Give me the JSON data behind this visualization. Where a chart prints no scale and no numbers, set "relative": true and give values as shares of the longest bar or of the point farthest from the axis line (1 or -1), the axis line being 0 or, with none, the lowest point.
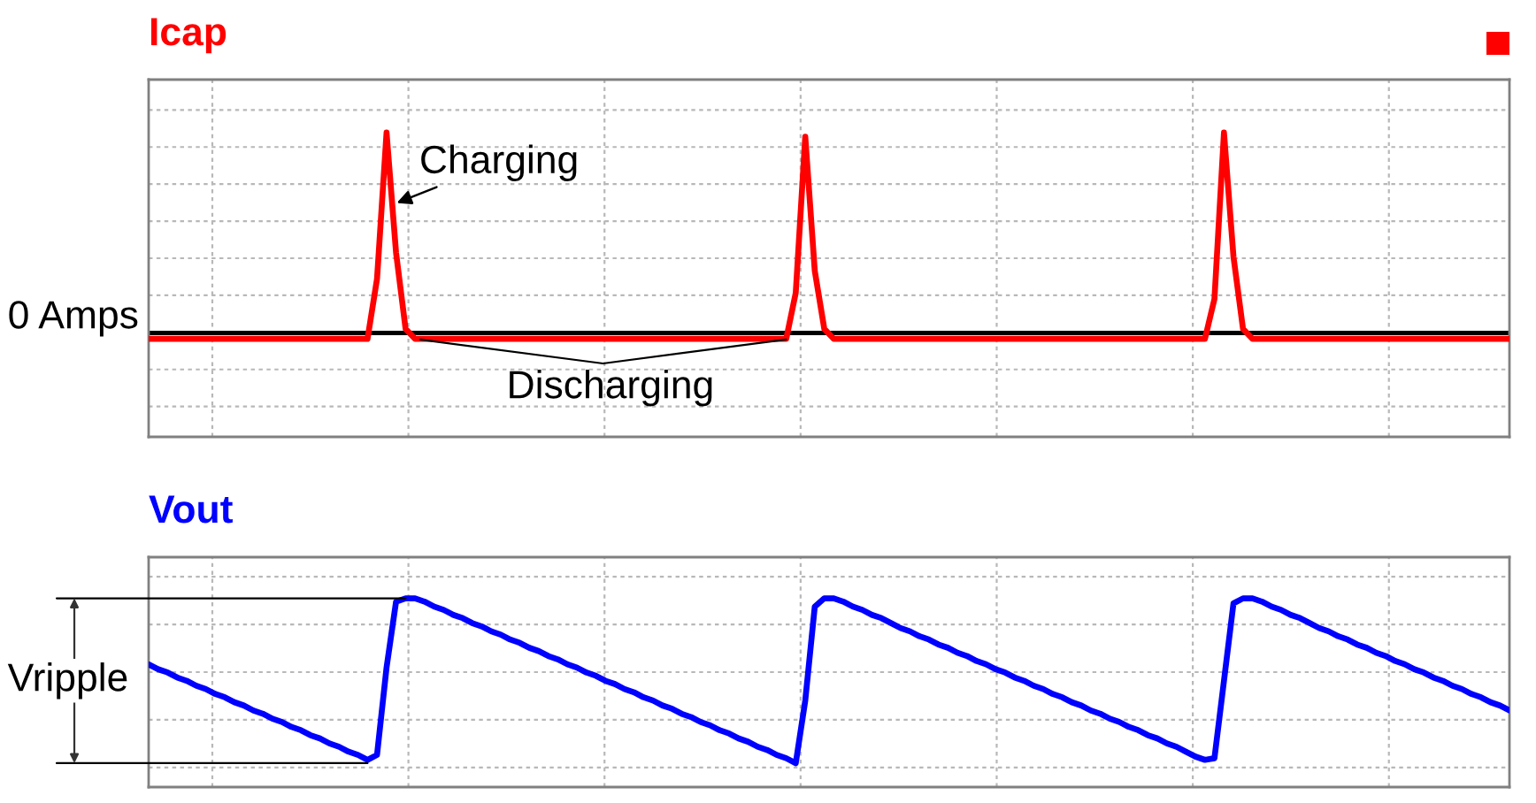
{
  "chart_data": [
    {
      "type": "line",
      "title": "Icap",
      "relative": true,
      "grid": true,
      "categories": [
        null,
        null,
        null,
        null,
        null,
        null,
        null,
        null,
        null,
        null,
        null,
        null,
        null,
        null,
        null,
        null,
        null,
        null,
        null,
        null,
        null,
        null,
        null,
        null,
        null,
        null,
        null,
        null,
        null,
        null,
        null,
        null,
        null,
        null,
        null,
        null,
        null,
        null,
        null,
        null,
        null,
        null,
        null,
        null,
        null,
        null,
        null,
        null,
        null,
        null,
        null,
        null,
        null,
        null,
        null,
        null,
        null,
        null,
        null,
        null,
        null,
        null,
        null,
        null,
        null,
        null,
        null,
        null,
        null,
        null,
        null,
        null,
        null,
        null,
        null,
        null,
        null,
        null,
        null,
        null,
        null,
        null,
        null,
        null,
        null,
        null,
        null,
        null,
        null,
        null,
        null,
        null,
        null,
        null,
        null,
        null,
        null,
        null,
        null,
        null,
        null,
        null,
        null,
        null,
        null,
        null,
        null,
        null,
        null,
        null,
        null,
        null,
        null,
        null,
        null,
        null,
        null,
        null,
        null,
        null,
        null,
        null,
        null,
        null,
        null,
        null,
        null,
        null,
        null,
        null,
        null,
        null,
        null,
        null,
        null,
        null,
        null,
        null,
        null,
        null,
        null,
        null,
        null,
        null
      ],
      "series": [
        {
          "color": "#ff0000",
          "values": [
            -0.03,
            -0.03,
            -0.03,
            -0.03,
            -0.03,
            -0.03,
            -0.03,
            -0.03,
            -0.03,
            -0.03,
            -0.03,
            -0.03,
            -0.03,
            -0.03,
            -0.03,
            -0.03,
            -0.03,
            -0.03,
            -0.03,
            -0.03,
            -0.03,
            -0.03,
            -0.03,
            -0.03,
            0.27,
            1,
            0.4,
            0.02,
            -0.03,
            -0.03,
            -0.03,
            -0.03,
            -0.03,
            -0.03,
            -0.03,
            -0.03,
            -0.03,
            -0.03,
            -0.03,
            -0.03,
            -0.03,
            -0.03,
            -0.03,
            -0.03,
            -0.03,
            -0.03,
            -0.03,
            -0.03,
            -0.03,
            -0.03,
            -0.03,
            -0.03,
            -0.03,
            -0.03,
            -0.03,
            -0.03,
            -0.03,
            -0.03,
            -0.03,
            -0.03,
            -0.03,
            -0.03,
            -0.03,
            -0.03,
            -0.03,
            -0.03,
            -0.03,
            -0.03,
            0.2,
            0.98,
            0.31,
            0.02,
            -0.03,
            -0.03,
            -0.03,
            -0.03,
            -0.03,
            -0.03,
            -0.03,
            -0.03,
            -0.03,
            -0.03,
            -0.03,
            -0.03,
            -0.03,
            -0.03,
            -0.03,
            -0.03,
            -0.03,
            -0.03,
            -0.03,
            -0.03,
            -0.03,
            -0.03,
            -0.03,
            -0.03,
            -0.03,
            -0.03,
            -0.03,
            -0.03,
            -0.03,
            -0.03,
            -0.03,
            -0.03,
            -0.03,
            -0.03,
            -0.03,
            -0.03,
            -0.03,
            -0.03,
            -0.03,
            -0.03,
            0.17,
            1,
            0.38,
            0.02,
            -0.03,
            -0.03,
            -0.03,
            -0.03,
            -0.03,
            -0.03,
            -0.03,
            -0.03,
            -0.03,
            -0.03,
            -0.03,
            -0.03,
            -0.03,
            -0.03,
            -0.03,
            -0.03,
            -0.03,
            -0.03,
            -0.03,
            -0.03,
            -0.03,
            -0.03,
            -0.03,
            -0.03,
            -0.03,
            -0.03,
            -0.03,
            -0.03
          ]
        }
      ],
      "ref_lines": [
        {
          "axis": "y",
          "value": 0,
          "label": "0 Amps",
          "color": "#000000"
        }
      ],
      "annotations": [
        "Charging",
        "Discharging"
      ]
    },
    {
      "type": "line",
      "title": "Vout",
      "relative": true,
      "grid": true,
      "categories": [
        null,
        null,
        null,
        null,
        null,
        null,
        null,
        null,
        null,
        null,
        null,
        null,
        null,
        null,
        null,
        null,
        null,
        null,
        null,
        null,
        null,
        null,
        null,
        null,
        null,
        null,
        null,
        null,
        null,
        null,
        null,
        null,
        null,
        null,
        null,
        null,
        null,
        null,
        null,
        null,
        null,
        null,
        null,
        null,
        null,
        null,
        null,
        null,
        null,
        null,
        null,
        null,
        null,
        null,
        null,
        null,
        null,
        null,
        null,
        null,
        null,
        null,
        null,
        null,
        null,
        null,
        null,
        null,
        null,
        null,
        null,
        null,
        null,
        null,
        null,
        null,
        null,
        null,
        null,
        null,
        null,
        null,
        null,
        null,
        null,
        null,
        null,
        null,
        null,
        null,
        null,
        null,
        null,
        null,
        null,
        null,
        null,
        null,
        null,
        null,
        null,
        null,
        null,
        null,
        null,
        null,
        null,
        null,
        null,
        null,
        null,
        null,
        null,
        null,
        null,
        null,
        null,
        null,
        null,
        null,
        null,
        null,
        null,
        null,
        null,
        null,
        null,
        null,
        null,
        null,
        null,
        null,
        null,
        null,
        null,
        null,
        null,
        null,
        null,
        null,
        null,
        null,
        null,
        null
      ],
      "series": [
        {
          "color": "#0000ff",
          "values": [
            0.6,
            0.57,
            0.55,
            0.52,
            0.5,
            0.47,
            0.45,
            0.42,
            0.4,
            0.37,
            0.35,
            0.32,
            0.3,
            0.27,
            0.25,
            0.22,
            0.2,
            0.17,
            0.15,
            0.12,
            0.1,
            0.07,
            0.05,
            0.02,
            0.05,
            0.58,
            0.98,
            1,
            1,
            0.98,
            0.95,
            0.93,
            0.9,
            0.88,
            0.85,
            0.83,
            0.8,
            0.78,
            0.75,
            0.73,
            0.7,
            0.68,
            0.65,
            0.63,
            0.6,
            0.58,
            0.55,
            0.53,
            0.5,
            0.48,
            0.45,
            0.43,
            0.4,
            0.38,
            0.35,
            0.33,
            0.3,
            0.28,
            0.25,
            0.23,
            0.2,
            0.18,
            0.15,
            0.13,
            0.1,
            0.08,
            0.05,
            0.03,
            0,
            0.38,
            0.95,
            1,
            1,
            0.98,
            0.95,
            0.93,
            0.9,
            0.88,
            0.85,
            0.82,
            0.8,
            0.77,
            0.75,
            0.72,
            0.7,
            0.67,
            0.65,
            0.62,
            0.6,
            0.57,
            0.55,
            0.52,
            0.5,
            0.47,
            0.45,
            0.42,
            0.4,
            0.37,
            0.35,
            0.32,
            0.3,
            0.27,
            0.25,
            0.22,
            0.2,
            0.17,
            0.15,
            0.12,
            0.1,
            0.07,
            0.04,
            0.02,
            0.03,
            0.5,
            0.97,
            1,
            1,
            0.98,
            0.95,
            0.93,
            0.9,
            0.88,
            0.85,
            0.82,
            0.8,
            0.77,
            0.75,
            0.72,
            0.7,
            0.67,
            0.65,
            0.62,
            0.6,
            0.57,
            0.55,
            0.52,
            0.5,
            0.47,
            0.45,
            0.42,
            0.4,
            0.37,
            0.35,
            0.32
          ]
        }
      ],
      "annotations": [
        "Vripple"
      ]
    }
  ]
}
